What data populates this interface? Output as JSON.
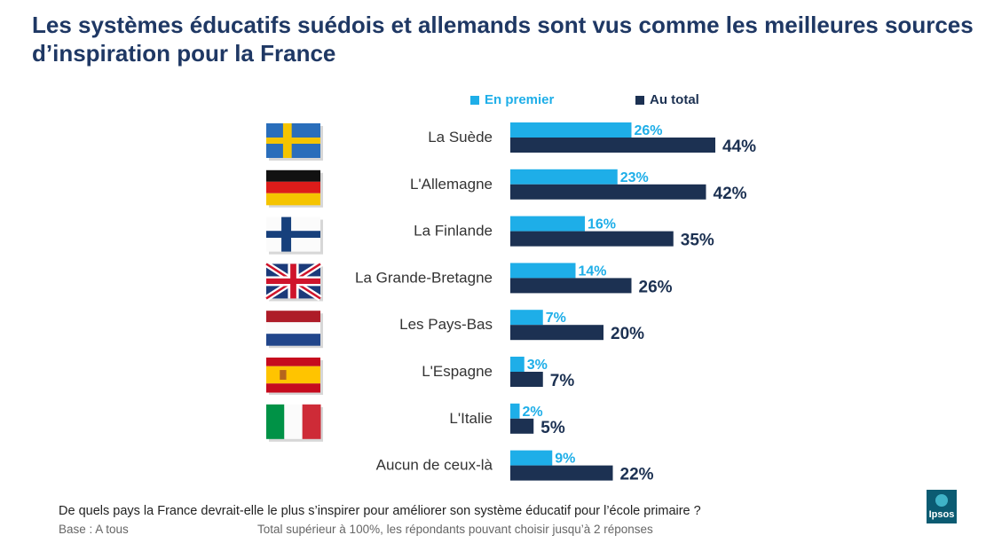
{
  "title": "Les systèmes éducatifs suédois et allemands sont vus comme les meilleures sources d’inspiration pour la France",
  "footer": {
    "question": "De quels pays la France devrait-elle le plus s’inspirer pour améliorer son système éducatif pour l’école primaire ?",
    "base": "Base : A tous",
    "note": "Total supérieur à 100%, les répondants pouvant choisir jusqu’à 2 réponses"
  },
  "logo": {
    "text": "Ipsos"
  },
  "colors": {
    "first": "#1eaee8",
    "total": "#1c3152",
    "label": "#333333"
  },
  "chart_data": {
    "type": "bar",
    "orientation": "horizontal",
    "value_unit": "%",
    "categories": [
      "La Suède",
      "L'Allemagne",
      "La Finlande",
      "La Grande-Bretagne",
      "Les Pays-Bas",
      "L'Espagne",
      "L'Italie",
      "Aucun de ceux-là"
    ],
    "flags": [
      "sweden-flag",
      "germany-flag",
      "finland-flag",
      "uk-flag",
      "netherlands-flag",
      "spain-flag",
      "italy-flag",
      ""
    ],
    "series": [
      {
        "name": "En premier",
        "values": [
          26,
          23,
          16,
          14,
          7,
          3,
          2,
          9
        ]
      },
      {
        "name": "Au total",
        "values": [
          44,
          42,
          35,
          26,
          20,
          7,
          5,
          22
        ]
      }
    ],
    "xlim": [
      0,
      100
    ],
    "legend": "top"
  }
}
